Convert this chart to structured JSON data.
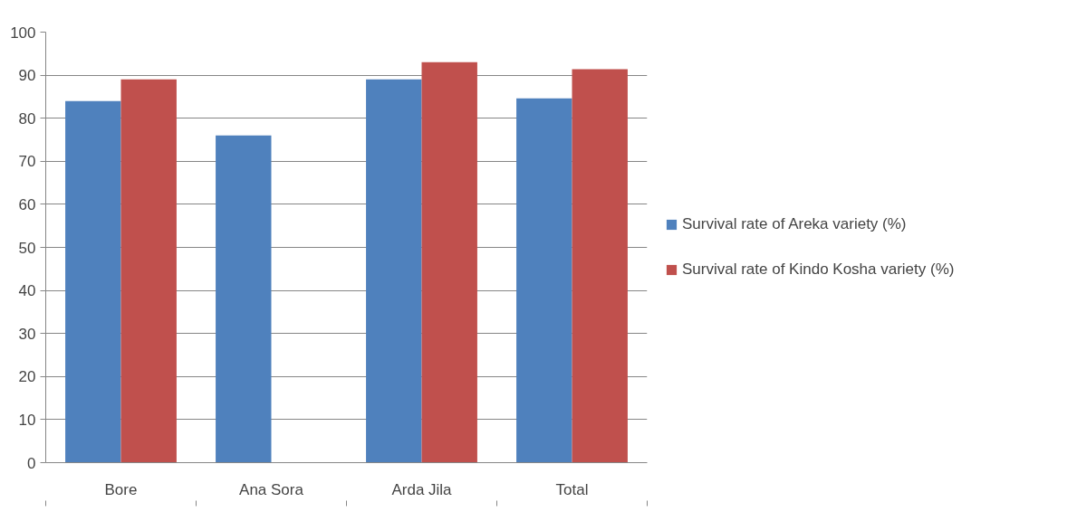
{
  "chart_data": {
    "type": "bar",
    "categories": [
      "Bore",
      "Ana Sora",
      "Arda Jila",
      "Total"
    ],
    "series": [
      {
        "name": "Survival rate of Areka variety (%)",
        "color": "#4f81bd",
        "values": [
          84,
          76,
          89,
          84.6
        ]
      },
      {
        "name": "Survival rate of Kindo Kosha variety (%)",
        "color": "#c0504d",
        "values": [
          89,
          null,
          93,
          91.4
        ]
      }
    ],
    "ylim": [
      0,
      100
    ],
    "yticks": [
      0,
      10,
      20,
      30,
      40,
      50,
      60,
      70,
      80,
      90,
      100
    ],
    "grid": "y",
    "legend": "right"
  }
}
